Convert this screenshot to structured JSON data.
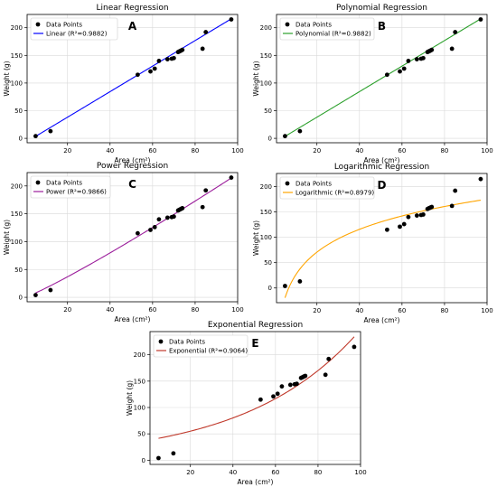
{
  "figure": {
    "background": "#ffffff"
  },
  "chart_data": [
    {
      "type": "scatter",
      "panel": "A",
      "title": "Linear Regression",
      "xlabel": "Area (cm²)",
      "ylabel": "Weight (g)",
      "xlim": [
        1,
        100
      ],
      "ylim": [
        -8,
        224
      ],
      "xticks": [
        20,
        40,
        60,
        80,
        100
      ],
      "yticks": [
        0,
        50,
        100,
        150,
        200
      ],
      "grid": true,
      "legend_position": "upper-left",
      "points": {
        "name": "Data Points",
        "color": "#000000",
        "x": [
          5,
          12,
          53,
          59,
          61,
          63,
          67,
          69,
          70,
          72,
          72.5,
          73,
          73.5,
          74,
          83.5,
          85,
          97
        ],
        "y": [
          4,
          13,
          115,
          121,
          126,
          140,
          143,
          144,
          145,
          156,
          157,
          158,
          159,
          160,
          162,
          192,
          215
        ]
      },
      "fit": {
        "name": "Linear (R²=0.9882)",
        "color": "#0000ff",
        "model": "linear",
        "a": 2.31,
        "b": -8.0,
        "xrange": [
          5,
          97
        ]
      }
    },
    {
      "type": "scatter",
      "panel": "B",
      "title": "Polynomial Regression",
      "xlabel": "Area (cm²)",
      "ylabel": "Weight (g)",
      "xlim": [
        1,
        100
      ],
      "ylim": [
        -8,
        224
      ],
      "xticks": [
        20,
        40,
        60,
        80,
        100
      ],
      "yticks": [
        0,
        50,
        100,
        150,
        200
      ],
      "grid": true,
      "legend_position": "upper-left",
      "points": {
        "name": "Data Points",
        "color": "#000000",
        "x": [
          5,
          12,
          53,
          59,
          61,
          63,
          67,
          69,
          70,
          72,
          72.5,
          73,
          73.5,
          74,
          83.5,
          85,
          97
        ],
        "y": [
          4,
          13,
          115,
          121,
          126,
          140,
          143,
          144,
          145,
          156,
          157,
          158,
          159,
          160,
          162,
          192,
          215
        ]
      },
      "fit": {
        "name": "Polynomial (R²=0.9882)",
        "color": "#2ca02c",
        "model": "linear",
        "a": 2.31,
        "b": -8.0,
        "xrange": [
          5,
          97
        ]
      }
    },
    {
      "type": "scatter",
      "panel": "C",
      "title": "Power Regression",
      "xlabel": "Area (cm²)",
      "ylabel": "Weight (g)",
      "xlim": [
        1,
        100
      ],
      "ylim": [
        -8,
        224
      ],
      "xticks": [
        20,
        40,
        60,
        80,
        100
      ],
      "yticks": [
        0,
        50,
        100,
        150,
        200
      ],
      "grid": true,
      "legend_position": "upper-left",
      "points": {
        "name": "Data Points",
        "color": "#000000",
        "x": [
          5,
          12,
          53,
          59,
          61,
          63,
          67,
          69,
          70,
          72,
          72.5,
          73,
          73.5,
          74,
          83.5,
          85,
          97
        ],
        "y": [
          4,
          13,
          115,
          121,
          126,
          140,
          143,
          144,
          145,
          156,
          157,
          158,
          159,
          160,
          162,
          192,
          215
        ]
      },
      "fit": {
        "name": "Power (R²=0.9866)",
        "color": "#9b1d9b",
        "model": "power",
        "a": 1.305,
        "b": 1.115,
        "xrange": [
          5,
          97
        ]
      }
    },
    {
      "type": "scatter",
      "panel": "D",
      "title": "Logarithmic Regression",
      "xlabel": "Area (cm²)",
      "ylabel": "Weight (g)",
      "xlim": [
        1,
        100
      ],
      "ylim": [
        -29,
        226
      ],
      "xticks": [
        20,
        40,
        60,
        80,
        100
      ],
      "yticks": [
        0,
        50,
        100,
        150,
        200
      ],
      "grid": true,
      "legend_position": "upper-left",
      "points": {
        "name": "Data Points",
        "color": "#000000",
        "x": [
          5,
          12,
          53,
          59,
          61,
          63,
          67,
          69,
          70,
          72,
          72.5,
          73,
          73.5,
          74,
          83.5,
          85,
          97
        ],
        "y": [
          4,
          13,
          115,
          121,
          126,
          140,
          143,
          144,
          145,
          156,
          157,
          158,
          159,
          160,
          162,
          192,
          215
        ]
      },
      "fit": {
        "name": "Logarithmic (R²=0.8979)",
        "color": "#ffa500",
        "model": "log",
        "a": 65.0,
        "b": -124.0,
        "xrange": [
          5,
          97
        ]
      }
    },
    {
      "type": "scatter",
      "panel": "E",
      "title": "Exponential Regression",
      "xlabel": "Area (cm²)",
      "ylabel": "Weight (g)",
      "xlim": [
        1,
        100
      ],
      "ylim": [
        -8,
        244
      ],
      "xticks": [
        20,
        40,
        60,
        80,
        100
      ],
      "yticks": [
        0,
        50,
        100,
        150,
        200
      ],
      "grid": true,
      "legend_position": "upper-left",
      "points": {
        "name": "Data Points",
        "color": "#000000",
        "x": [
          5,
          12,
          53,
          59,
          61,
          63,
          67,
          69,
          70,
          72,
          72.5,
          73,
          73.5,
          74,
          83.5,
          85,
          97
        ],
        "y": [
          4,
          13,
          115,
          121,
          126,
          140,
          143,
          144,
          145,
          156,
          157,
          158,
          159,
          160,
          162,
          192,
          215
        ]
      },
      "fit": {
        "name": "Exponential (R²=0.9064)",
        "color": "#c0392b",
        "model": "exp",
        "a": 37.8,
        "b": 0.0188,
        "xrange": [
          5,
          97
        ]
      }
    }
  ]
}
